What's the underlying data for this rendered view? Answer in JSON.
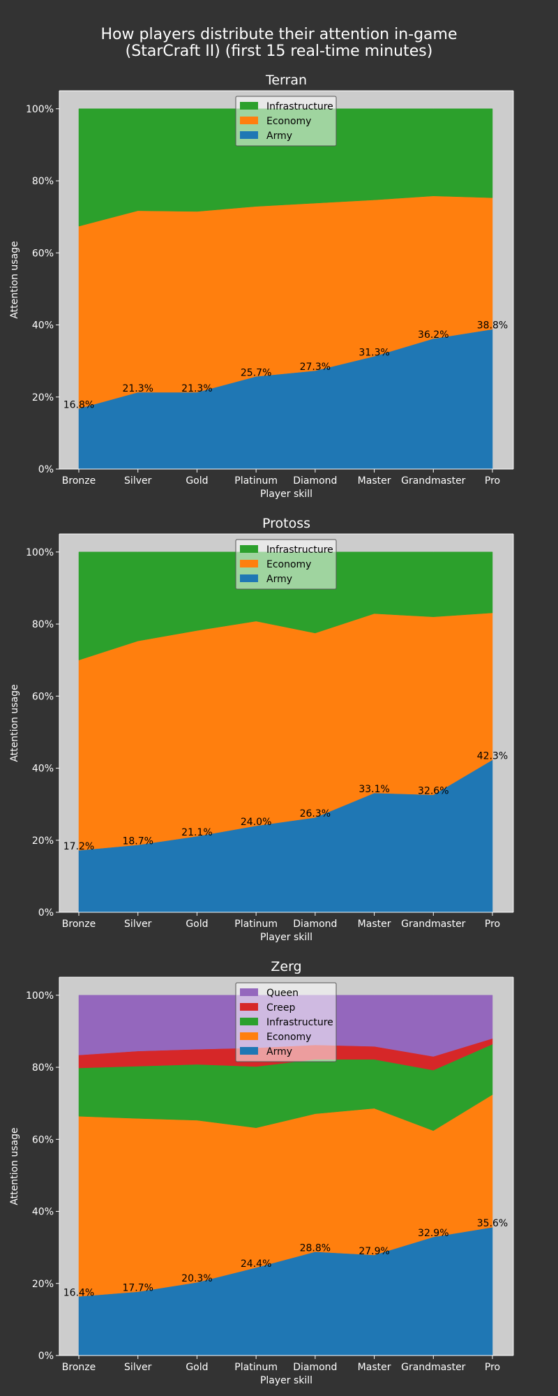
{
  "title_line1": "How players distribute their attention in-game",
  "title_line2": "(StarCraft II) (first 15 real-time minutes)",
  "colors": {
    "background": "#333333",
    "plot_background": "#cccccc",
    "Army": "#1f77b4",
    "Economy": "#ff7f0e",
    "Infrastructure": "#2ca02c",
    "Creep": "#d62728",
    "Queen": "#9467bd"
  },
  "chart_data": [
    {
      "type": "area",
      "stacked": true,
      "title": "Terran",
      "xlabel": "Player skill",
      "ylabel": "Attention usage",
      "categories": [
        "Bronze",
        "Silver",
        "Gold",
        "Platinum",
        "Diamond",
        "Master",
        "Grandmaster",
        "Pro"
      ],
      "yticks": [
        "0%",
        "20%",
        "40%",
        "60%",
        "80%",
        "100%"
      ],
      "ylim": [
        0,
        105
      ],
      "legend_position": "upper center",
      "series": [
        {
          "name": "Army",
          "values": [
            16.8,
            21.3,
            21.3,
            25.7,
            27.3,
            31.3,
            36.2,
            38.8
          ]
        },
        {
          "name": "Economy",
          "values": [
            50.6,
            50.4,
            50.2,
            47.2,
            46.5,
            43.4,
            39.6,
            36.5
          ]
        },
        {
          "name": "Infrastructure",
          "values": [
            32.6,
            28.3,
            28.5,
            27.1,
            26.2,
            25.3,
            24.2,
            24.7
          ]
        }
      ],
      "data_labels": [
        "16.8%",
        "21.3%",
        "21.3%",
        "25.7%",
        "27.3%",
        "31.3%",
        "36.2%",
        "38.8%"
      ]
    },
    {
      "type": "area",
      "stacked": true,
      "title": "Protoss",
      "xlabel": "Player skill",
      "ylabel": "Attention usage",
      "categories": [
        "Bronze",
        "Silver",
        "Gold",
        "Platinum",
        "Diamond",
        "Master",
        "Grandmaster",
        "Pro"
      ],
      "yticks": [
        "0%",
        "20%",
        "40%",
        "60%",
        "80%",
        "100%"
      ],
      "ylim": [
        0,
        105
      ],
      "legend_position": "upper center",
      "series": [
        {
          "name": "Army",
          "values": [
            17.2,
            18.7,
            21.1,
            24.0,
            26.3,
            33.1,
            32.6,
            42.3
          ]
        },
        {
          "name": "Economy",
          "values": [
            52.8,
            56.6,
            57.1,
            56.8,
            51.2,
            49.8,
            49.4,
            40.8
          ]
        },
        {
          "name": "Infrastructure",
          "values": [
            30.0,
            24.7,
            21.8,
            19.2,
            22.5,
            17.1,
            18.0,
            16.9
          ]
        }
      ],
      "data_labels": [
        "17.2%",
        "18.7%",
        "21.1%",
        "24.0%",
        "26.3%",
        "33.1%",
        "32.6%",
        "42.3%"
      ]
    },
    {
      "type": "area",
      "stacked": true,
      "title": "Zerg",
      "xlabel": "Player skill",
      "ylabel": "Attention usage",
      "categories": [
        "Bronze",
        "Silver",
        "Gold",
        "Platinum",
        "Diamond",
        "Master",
        "Grandmaster",
        "Pro"
      ],
      "yticks": [
        "0%",
        "20%",
        "40%",
        "60%",
        "80%",
        "100%"
      ],
      "ylim": [
        0,
        105
      ],
      "legend_position": "upper center",
      "series": [
        {
          "name": "Army",
          "values": [
            16.4,
            17.7,
            20.3,
            24.4,
            28.8,
            27.9,
            32.9,
            35.6
          ]
        },
        {
          "name": "Economy",
          "values": [
            50.0,
            48.1,
            45.0,
            38.8,
            38.3,
            40.7,
            29.5,
            36.8
          ]
        },
        {
          "name": "Infrastructure",
          "values": [
            13.4,
            14.5,
            15.5,
            17.0,
            15.1,
            13.6,
            16.8,
            14.0
          ]
        },
        {
          "name": "Creep",
          "values": [
            3.6,
            4.2,
            4.2,
            5.2,
            4.0,
            3.6,
            3.8,
            1.6
          ]
        },
        {
          "name": "Queen",
          "values": [
            16.6,
            15.5,
            15.0,
            14.6,
            13.8,
            14.2,
            17.0,
            12.0
          ]
        }
      ],
      "data_labels": [
        "16.4%",
        "17.7%",
        "20.3%",
        "24.4%",
        "28.8%",
        "27.9%",
        "32.9%",
        "35.6%"
      ]
    }
  ]
}
